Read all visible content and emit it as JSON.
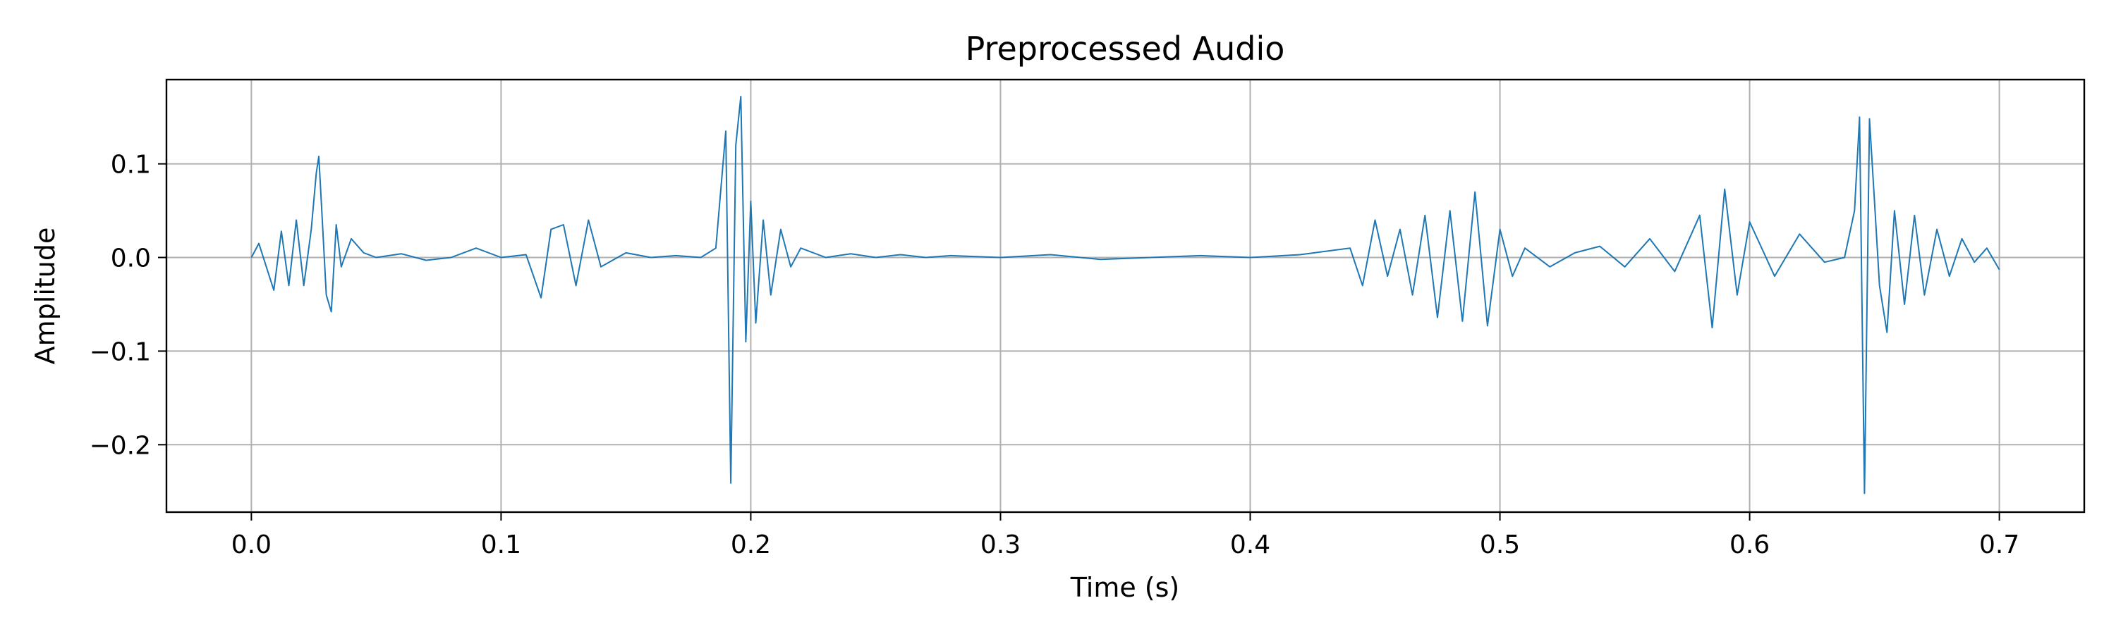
{
  "chart_data": {
    "type": "line",
    "title": "Preprocessed Audio",
    "xlabel": "Time (s)",
    "ylabel": "Amplitude",
    "xlim": [
      -0.034,
      0.734
    ],
    "ylim": [
      -0.272,
      0.19
    ],
    "xticks": [
      0.0,
      0.1,
      0.2,
      0.3,
      0.4,
      0.5,
      0.6,
      0.7
    ],
    "xtick_labels": [
      "0.0",
      "0.1",
      "0.2",
      "0.3",
      "0.4",
      "0.5",
      "0.6",
      "0.7"
    ],
    "yticks": [
      0.1,
      0.0,
      -0.1,
      -0.2
    ],
    "ytick_labels": [
      "0.1",
      "0.0",
      "−0.1",
      "−0.2"
    ],
    "grid": true,
    "color": "#1f77b4",
    "series": [
      {
        "x": [
          0.0,
          0.003,
          0.006,
          0.009,
          0.012,
          0.015,
          0.018,
          0.021,
          0.024,
          0.026,
          0.027,
          0.028,
          0.03,
          0.032,
          0.034,
          0.036,
          0.04,
          0.045,
          0.05,
          0.06,
          0.07,
          0.08,
          0.09,
          0.1,
          0.11,
          0.116,
          0.12,
          0.125,
          0.13,
          0.135,
          0.14,
          0.15,
          0.16,
          0.17,
          0.18,
          0.186,
          0.19,
          0.192,
          0.194,
          0.196,
          0.198,
          0.2,
          0.202,
          0.205,
          0.208,
          0.212,
          0.216,
          0.22,
          0.23,
          0.24,
          0.25,
          0.26,
          0.27,
          0.28,
          0.3,
          0.32,
          0.34,
          0.36,
          0.38,
          0.4,
          0.42,
          0.44,
          0.445,
          0.45,
          0.455,
          0.46,
          0.465,
          0.47,
          0.475,
          0.48,
          0.485,
          0.49,
          0.495,
          0.5,
          0.505,
          0.51,
          0.52,
          0.53,
          0.54,
          0.55,
          0.56,
          0.57,
          0.58,
          0.585,
          0.59,
          0.595,
          0.6,
          0.61,
          0.62,
          0.63,
          0.638,
          0.642,
          0.644,
          0.646,
          0.648,
          0.65,
          0.652,
          0.655,
          0.658,
          0.662,
          0.666,
          0.67,
          0.675,
          0.68,
          0.685,
          0.69,
          0.695,
          0.7
        ],
        "y": [
          0.0,
          0.015,
          -0.01,
          -0.035,
          0.028,
          -0.03,
          0.04,
          -0.03,
          0.03,
          0.09,
          0.108,
          0.06,
          -0.04,
          -0.058,
          0.035,
          -0.01,
          0.02,
          0.005,
          0.0,
          0.004,
          -0.003,
          0.0,
          0.01,
          0.0,
          0.003,
          -0.043,
          0.03,
          0.035,
          -0.03,
          0.04,
          -0.01,
          0.005,
          0.0,
          0.002,
          0.0,
          0.01,
          0.135,
          -0.241,
          0.12,
          0.172,
          -0.09,
          0.06,
          -0.07,
          0.04,
          -0.04,
          0.03,
          -0.01,
          0.01,
          0.0,
          0.004,
          0.0,
          0.003,
          0.0,
          0.002,
          0.0,
          0.003,
          -0.002,
          0.0,
          0.002,
          0.0,
          0.003,
          0.01,
          -0.03,
          0.04,
          -0.02,
          0.03,
          -0.04,
          0.045,
          -0.064,
          0.05,
          -0.068,
          0.07,
          -0.073,
          0.03,
          -0.02,
          0.01,
          -0.01,
          0.005,
          0.012,
          -0.01,
          0.02,
          -0.015,
          0.045,
          -0.075,
          0.073,
          -0.04,
          0.038,
          -0.02,
          0.025,
          -0.005,
          0.0,
          0.05,
          0.15,
          -0.252,
          0.148,
          0.06,
          -0.03,
          -0.08,
          0.05,
          -0.05,
          0.045,
          -0.04,
          0.03,
          -0.02,
          0.02,
          -0.005,
          0.01,
          -0.013
        ]
      }
    ]
  }
}
